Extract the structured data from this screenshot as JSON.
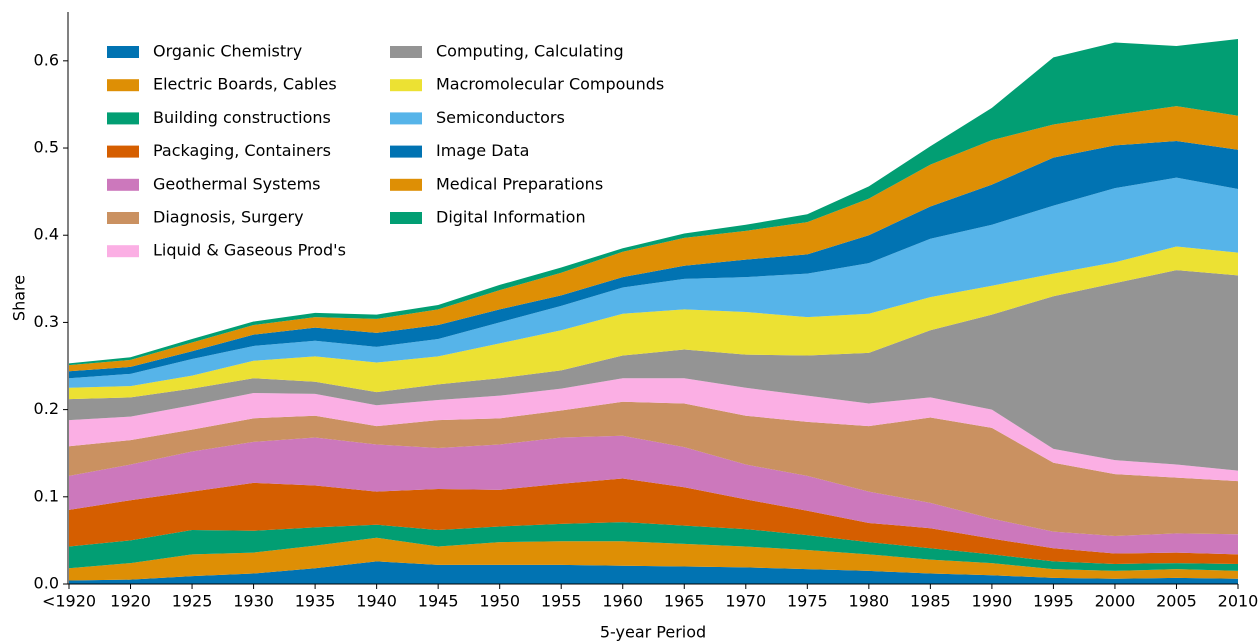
{
  "chart_data": {
    "type": "stacked-area",
    "x_label": "5-year Period",
    "y_label": "Share",
    "categories": [
      "<1920",
      "1920",
      "1925",
      "1930",
      "1935",
      "1940",
      "1945",
      "1950",
      "1955",
      "1960",
      "1965",
      "1970",
      "1975",
      "1980",
      "1985",
      "1990",
      "1995",
      "2000",
      "2005",
      "2010"
    ],
    "ylim": [
      0,
      0.656
    ],
    "yticks": [
      {
        "value": 0,
        "label": "0.0"
      },
      0.1,
      0.2,
      0.3,
      0.4,
      0.5,
      0.6
    ],
    "legend": "upper left",
    "legend_columns": 2,
    "series": [
      {
        "name": "Organic Chemistry",
        "color": "#0173b2",
        "values": [
          0.004,
          0.005,
          0.009,
          0.012,
          0.018,
          0.026,
          0.022,
          0.022,
          0.022,
          0.021,
          0.02,
          0.019,
          0.017,
          0.015,
          0.012,
          0.01,
          0.007,
          0.006,
          0.007,
          0.006
        ]
      },
      {
        "name": "Electric Boards, Cables",
        "color": "#de8f05",
        "values": [
          0.014,
          0.019,
          0.025,
          0.024,
          0.026,
          0.027,
          0.021,
          0.026,
          0.027,
          0.028,
          0.026,
          0.024,
          0.022,
          0.019,
          0.016,
          0.014,
          0.01,
          0.009,
          0.01,
          0.009
        ]
      },
      {
        "name": "Building constructions",
        "color": "#029e73",
        "values": [
          0.025,
          0.026,
          0.028,
          0.025,
          0.021,
          0.015,
          0.019,
          0.018,
          0.02,
          0.022,
          0.021,
          0.02,
          0.017,
          0.014,
          0.013,
          0.01,
          0.009,
          0.008,
          0.007,
          0.008
        ]
      },
      {
        "name": "Packaging, Containers",
        "color": "#d55e00",
        "values": [
          0.042,
          0.046,
          0.044,
          0.055,
          0.048,
          0.038,
          0.047,
          0.042,
          0.046,
          0.05,
          0.044,
          0.034,
          0.028,
          0.022,
          0.023,
          0.018,
          0.015,
          0.012,
          0.012,
          0.011
        ]
      },
      {
        "name": "Geothermal Systems",
        "color": "#cc78bc",
        "values": [
          0.039,
          0.041,
          0.046,
          0.047,
          0.055,
          0.054,
          0.047,
          0.052,
          0.053,
          0.049,
          0.046,
          0.04,
          0.04,
          0.036,
          0.029,
          0.023,
          0.019,
          0.02,
          0.022,
          0.023
        ]
      },
      {
        "name": "Diagnosis, Surgery",
        "color": "#ca9161",
        "values": [
          0.034,
          0.028,
          0.025,
          0.027,
          0.025,
          0.021,
          0.032,
          0.03,
          0.031,
          0.039,
          0.05,
          0.056,
          0.062,
          0.075,
          0.098,
          0.104,
          0.079,
          0.071,
          0.064,
          0.061
        ]
      },
      {
        "name": "Liquid & Gaseous Prod's",
        "color": "#fbafe4",
        "values": [
          0.03,
          0.027,
          0.028,
          0.029,
          0.025,
          0.024,
          0.023,
          0.026,
          0.025,
          0.027,
          0.029,
          0.032,
          0.03,
          0.026,
          0.023,
          0.021,
          0.016,
          0.016,
          0.015,
          0.012
        ]
      },
      {
        "name": "Computing, Calculating",
        "color": "#949494",
        "values": [
          0.024,
          0.022,
          0.019,
          0.017,
          0.014,
          0.015,
          0.018,
          0.02,
          0.021,
          0.026,
          0.033,
          0.038,
          0.046,
          0.058,
          0.077,
          0.109,
          0.175,
          0.203,
          0.223,
          0.224
        ]
      },
      {
        "name": "Macromolecular Compounds",
        "color": "#ece133",
        "values": [
          0.013,
          0.013,
          0.015,
          0.02,
          0.029,
          0.034,
          0.032,
          0.04,
          0.046,
          0.048,
          0.046,
          0.049,
          0.044,
          0.045,
          0.038,
          0.033,
          0.026,
          0.024,
          0.027,
          0.026
        ]
      },
      {
        "name": "Semiconductors",
        "color": "#56b4e9",
        "values": [
          0.011,
          0.014,
          0.019,
          0.017,
          0.018,
          0.018,
          0.02,
          0.024,
          0.028,
          0.03,
          0.035,
          0.04,
          0.05,
          0.058,
          0.067,
          0.07,
          0.078,
          0.085,
          0.079,
          0.073
        ]
      },
      {
        "name": "Image Data",
        "color": "#0173b2",
        "values": [
          0.008,
          0.008,
          0.009,
          0.013,
          0.015,
          0.016,
          0.016,
          0.015,
          0.012,
          0.012,
          0.015,
          0.02,
          0.022,
          0.032,
          0.037,
          0.046,
          0.055,
          0.049,
          0.042,
          0.045
        ]
      },
      {
        "name": "Medical Preparations",
        "color": "#de8f05",
        "values": [
          0.007,
          0.008,
          0.01,
          0.011,
          0.012,
          0.016,
          0.018,
          0.022,
          0.026,
          0.029,
          0.032,
          0.033,
          0.037,
          0.042,
          0.048,
          0.051,
          0.038,
          0.035,
          0.04,
          0.039
        ]
      },
      {
        "name": "Digital Information",
        "color": "#029e73",
        "values": [
          0.002,
          0.003,
          0.004,
          0.004,
          0.005,
          0.005,
          0.005,
          0.006,
          0.006,
          0.004,
          0.005,
          0.007,
          0.009,
          0.014,
          0.021,
          0.037,
          0.077,
          0.083,
          0.069,
          0.088
        ]
      }
    ]
  }
}
